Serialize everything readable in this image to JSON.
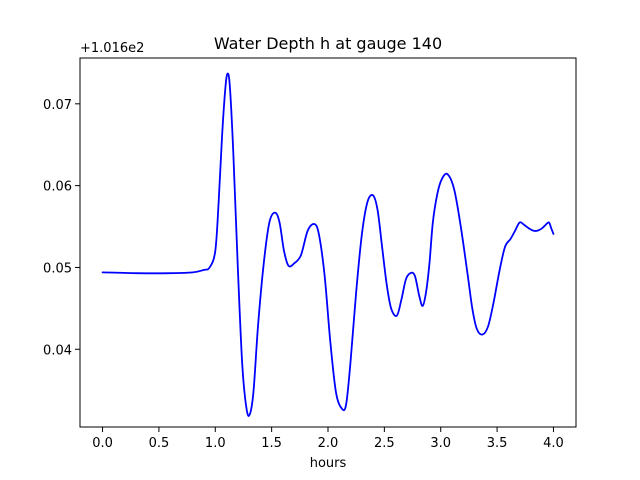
{
  "chart_data": {
    "type": "line",
    "title": "Water Depth h at gauge 140",
    "xlabel": "hours",
    "ylabel": "",
    "offset_text": "+1.016e2",
    "xlim": [
      -0.2,
      4.2
    ],
    "ylim": [
      0.0305,
      0.0756
    ],
    "xticks": [
      0.0,
      0.5,
      1.0,
      1.5,
      2.0,
      2.5,
      3.0,
      3.5,
      4.0
    ],
    "xtick_labels": [
      "0.0",
      "0.5",
      "1.0",
      "1.5",
      "2.0",
      "2.5",
      "3.0",
      "3.5",
      "4.0"
    ],
    "yticks": [
      0.04,
      0.05,
      0.06,
      0.07
    ],
    "ytick_labels": [
      "0.04",
      "0.05",
      "0.06",
      "0.07"
    ],
    "grid": false,
    "series": [
      {
        "color": "#0000ff",
        "x": [
          0.0,
          0.3,
          0.6,
          0.8,
          0.9,
          0.95,
          1.0,
          1.03,
          1.06,
          1.09,
          1.11,
          1.13,
          1.16,
          1.2,
          1.24,
          1.28,
          1.31,
          1.34,
          1.38,
          1.43,
          1.48,
          1.53,
          1.57,
          1.61,
          1.65,
          1.7,
          1.76,
          1.82,
          1.88,
          1.92,
          1.97,
          2.02,
          2.07,
          2.12,
          2.16,
          2.2,
          2.25,
          2.3,
          2.35,
          2.4,
          2.44,
          2.48,
          2.52,
          2.56,
          2.61,
          2.65,
          2.69,
          2.73,
          2.77,
          2.81,
          2.84,
          2.87,
          2.9,
          2.93,
          2.97,
          3.01,
          3.06,
          3.12,
          3.18,
          3.24,
          3.28,
          3.32,
          3.37,
          3.42,
          3.47,
          3.52,
          3.57,
          3.62,
          3.66,
          3.7,
          3.74,
          3.78,
          3.82,
          3.86,
          3.9,
          3.93,
          3.96,
          3.98,
          4.0
        ],
        "values": [
          0.0494,
          0.0493,
          0.0493,
          0.0494,
          0.0497,
          0.05,
          0.052,
          0.058,
          0.066,
          0.072,
          0.0737,
          0.072,
          0.064,
          0.05,
          0.038,
          0.0325,
          0.0322,
          0.035,
          0.043,
          0.0505,
          0.0555,
          0.0567,
          0.0555,
          0.052,
          0.0502,
          0.0505,
          0.0515,
          0.0545,
          0.0553,
          0.054,
          0.049,
          0.041,
          0.0348,
          0.0328,
          0.0332,
          0.0385,
          0.047,
          0.054,
          0.058,
          0.0588,
          0.057,
          0.0525,
          0.048,
          0.045,
          0.0441,
          0.046,
          0.0485,
          0.0493,
          0.049,
          0.0465,
          0.0453,
          0.047,
          0.0505,
          0.0555,
          0.059,
          0.0608,
          0.0614,
          0.0595,
          0.0548,
          0.049,
          0.045,
          0.0425,
          0.0418,
          0.0428,
          0.0458,
          0.0495,
          0.0525,
          0.0535,
          0.0545,
          0.0555,
          0.0552,
          0.0548,
          0.0545,
          0.0545,
          0.0548,
          0.0552,
          0.0555,
          0.0548,
          0.0541
        ]
      }
    ]
  }
}
